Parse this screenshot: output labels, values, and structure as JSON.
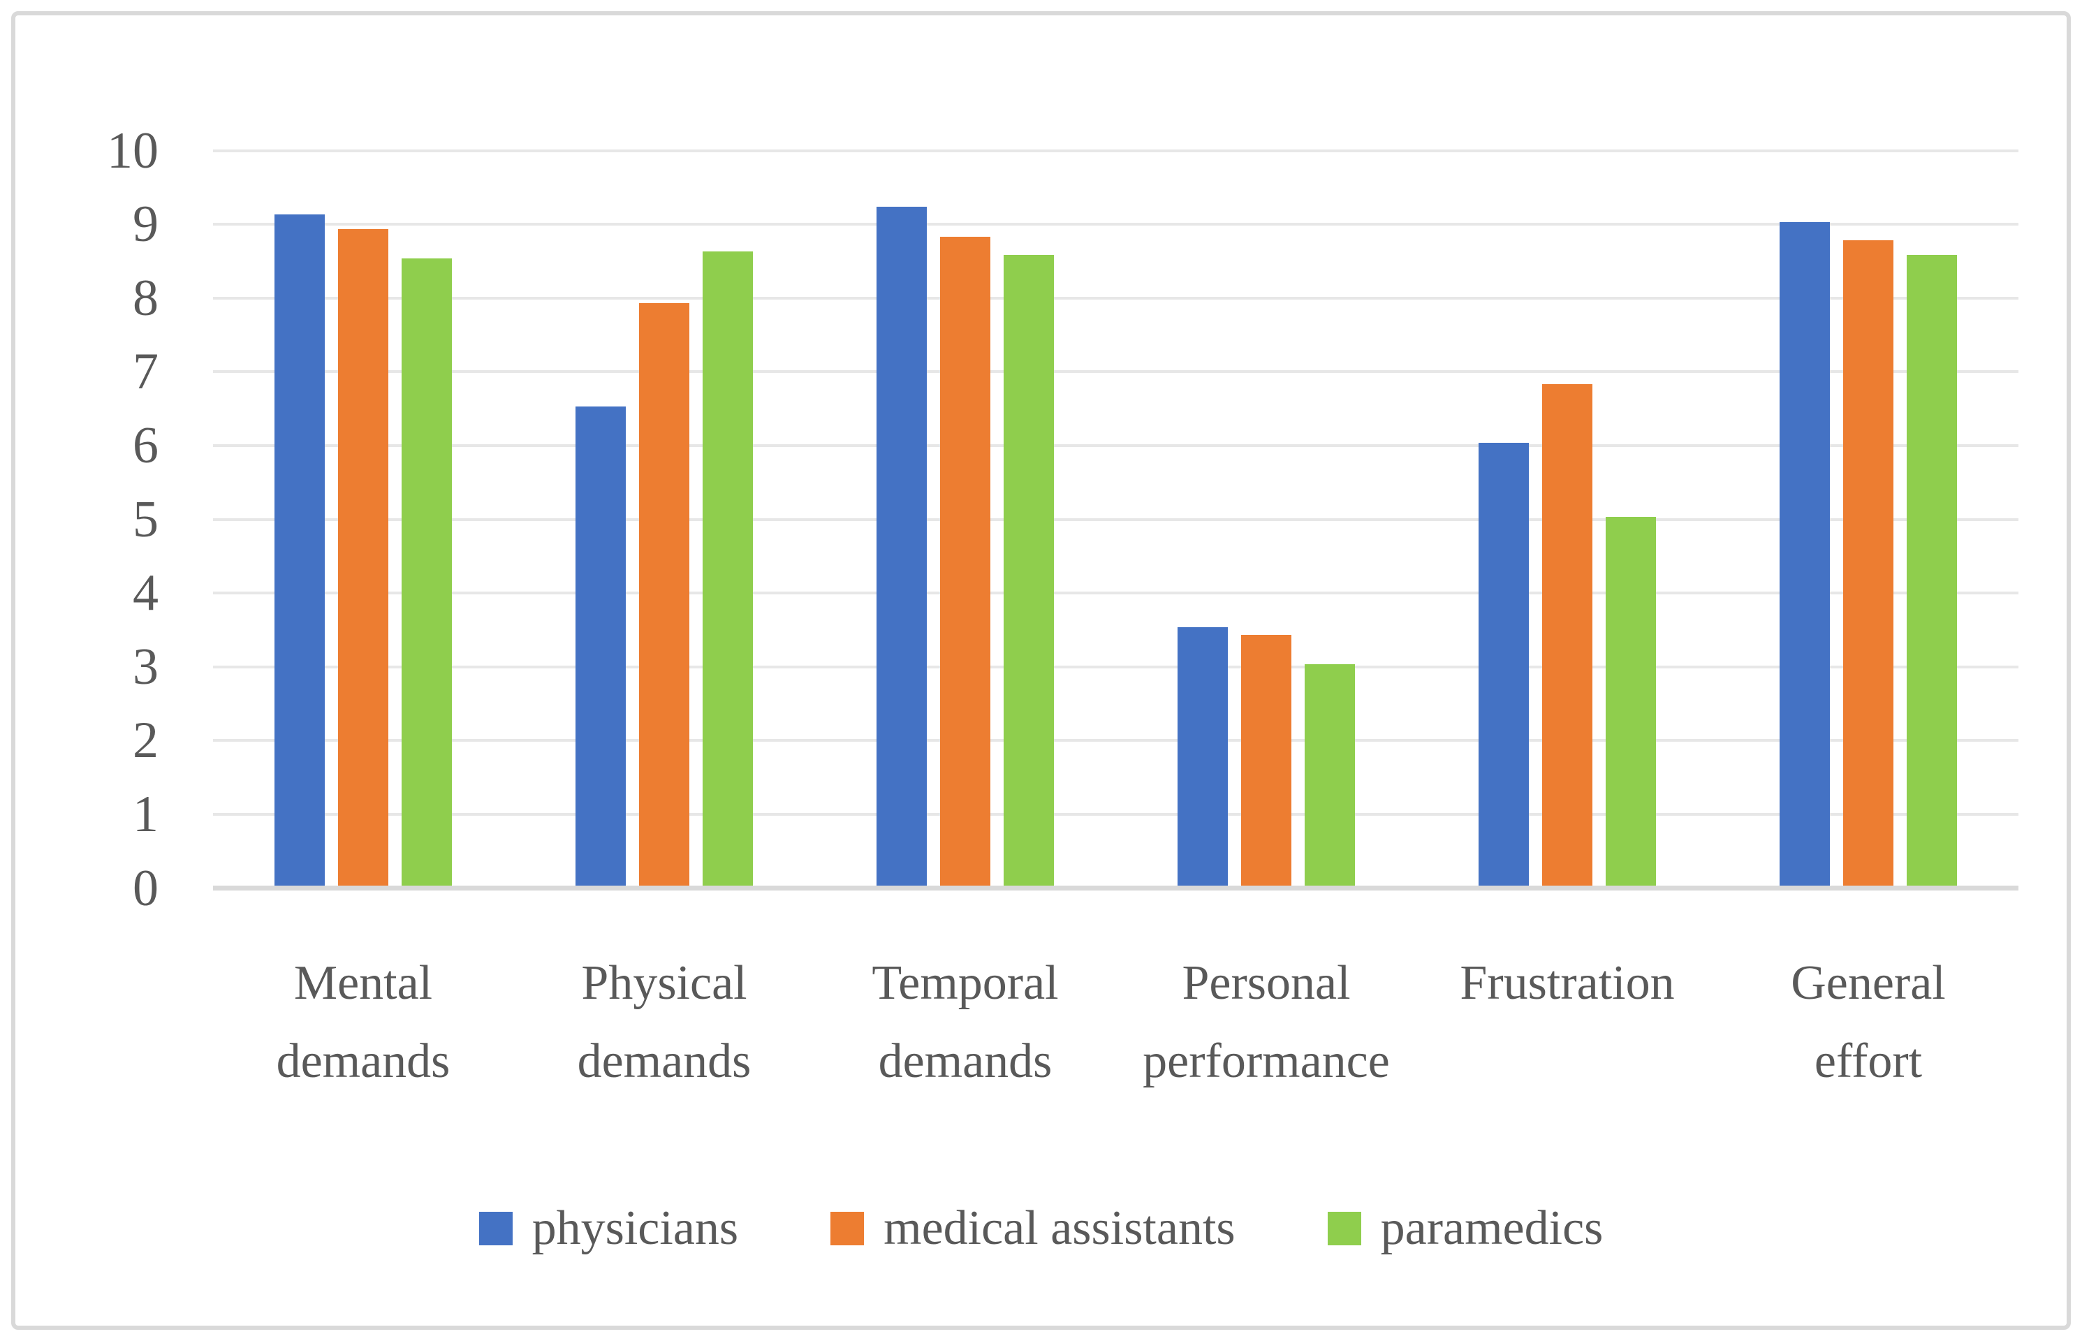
{
  "chart_data": {
    "type": "bar",
    "title": "",
    "xlabel": "",
    "ylabel": "",
    "categories": [
      "Mental demands",
      "Physical demands",
      "Temporal demands",
      "Personal performance",
      "Frustration",
      "General effort"
    ],
    "category_label_lines": [
      [
        "Mental",
        "demands"
      ],
      [
        "Physical",
        "demands"
      ],
      [
        "Temporal",
        "demands"
      ],
      [
        "Personal",
        "performance"
      ],
      [
        "Frustration"
      ],
      [
        "General",
        "effort"
      ]
    ],
    "series": [
      {
        "name": "physicians",
        "color": "#4472C4",
        "values": [
          9.1,
          6.5,
          9.2,
          3.5,
          6.0,
          9.0
        ]
      },
      {
        "name": "medical assistants",
        "color": "#ED7D31",
        "values": [
          8.9,
          7.9,
          8.8,
          3.4,
          6.8,
          8.75
        ]
      },
      {
        "name": "paramedics",
        "color": "#8FCE4D",
        "values": [
          8.5,
          8.6,
          8.55,
          3.0,
          5.0,
          8.55
        ]
      }
    ],
    "ylim": [
      0,
      10
    ],
    "yticks": [
      0,
      1,
      2,
      3,
      4,
      5,
      6,
      7,
      8,
      9,
      10
    ],
    "ytick_labels": [
      "0",
      "1",
      "2",
      "3",
      "4",
      "5",
      "6",
      "7",
      "8",
      "9",
      "10"
    ],
    "grid": true,
    "legend_position": "bottom"
  },
  "colors": {
    "gridline": "#E7E7E7",
    "axis_baseline": "#D9D9D9",
    "frame_border": "#D9D9D9",
    "text": "#595959",
    "background": "#FFFFFF"
  },
  "legend": {
    "items": [
      {
        "label": "physicians",
        "color": "#4472C4"
      },
      {
        "label": "medical assistants",
        "color": "#ED7D31"
      },
      {
        "label": "paramedics",
        "color": "#8FCE4D"
      }
    ]
  }
}
